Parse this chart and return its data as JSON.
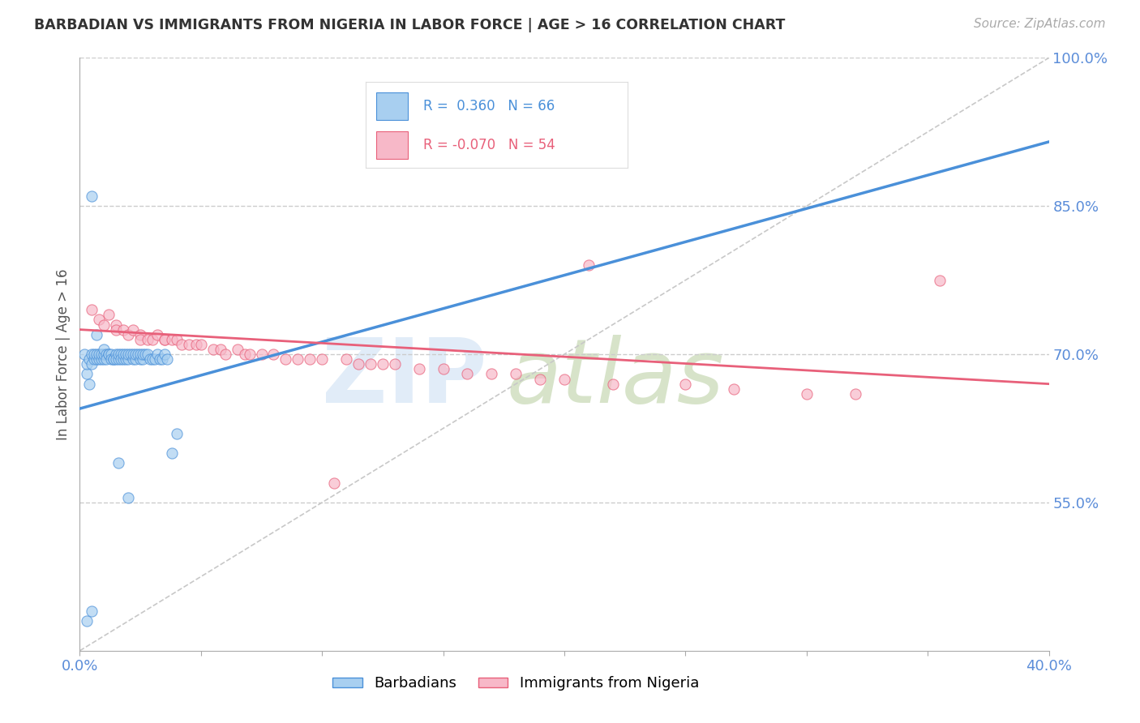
{
  "title": "BARBADIAN VS IMMIGRANTS FROM NIGERIA IN LABOR FORCE | AGE > 16 CORRELATION CHART",
  "source": "Source: ZipAtlas.com",
  "ylabel": "In Labor Force | Age > 16",
  "xlim": [
    0.0,
    0.4
  ],
  "ylim": [
    0.4,
    1.0
  ],
  "ytick_positions": [
    0.55,
    0.7,
    0.85,
    1.0
  ],
  "ytick_labels": [
    "55.0%",
    "70.0%",
    "85.0%",
    "100.0%"
  ],
  "blue_color": "#a8cff0",
  "pink_color": "#f7b8c8",
  "blue_line_color": "#4a90d9",
  "pink_line_color": "#e8607a",
  "ref_line_color": "#c8c8c8",
  "legend_blue_r": "0.360",
  "legend_blue_n": "66",
  "legend_pink_r": "-0.070",
  "legend_pink_n": "54",
  "label_color": "#5b8dd9",
  "blue_scatter_x": [
    0.002,
    0.003,
    0.003,
    0.004,
    0.004,
    0.005,
    0.005,
    0.005,
    0.006,
    0.006,
    0.007,
    0.007,
    0.007,
    0.008,
    0.008,
    0.009,
    0.009,
    0.01,
    0.01,
    0.01,
    0.011,
    0.011,
    0.012,
    0.012,
    0.013,
    0.013,
    0.014,
    0.014,
    0.015,
    0.015,
    0.016,
    0.016,
    0.017,
    0.017,
    0.018,
    0.018,
    0.019,
    0.019,
    0.02,
    0.02,
    0.021,
    0.022,
    0.022,
    0.023,
    0.023,
    0.024,
    0.025,
    0.025,
    0.026,
    0.026,
    0.027,
    0.028,
    0.029,
    0.03,
    0.031,
    0.032,
    0.033,
    0.034,
    0.035,
    0.036,
    0.038,
    0.04,
    0.003,
    0.005,
    0.016,
    0.02
  ],
  "blue_scatter_y": [
    0.7,
    0.68,
    0.69,
    0.67,
    0.695,
    0.86,
    0.7,
    0.69,
    0.695,
    0.7,
    0.695,
    0.7,
    0.72,
    0.695,
    0.7,
    0.695,
    0.7,
    0.695,
    0.7,
    0.705,
    0.7,
    0.695,
    0.7,
    0.7,
    0.7,
    0.695,
    0.695,
    0.695,
    0.7,
    0.695,
    0.695,
    0.7,
    0.7,
    0.695,
    0.695,
    0.7,
    0.695,
    0.7,
    0.695,
    0.7,
    0.7,
    0.695,
    0.7,
    0.695,
    0.7,
    0.7,
    0.695,
    0.7,
    0.695,
    0.7,
    0.7,
    0.7,
    0.695,
    0.695,
    0.695,
    0.7,
    0.695,
    0.695,
    0.7,
    0.695,
    0.6,
    0.62,
    0.43,
    0.44,
    0.59,
    0.555
  ],
  "pink_scatter_x": [
    0.005,
    0.008,
    0.01,
    0.012,
    0.015,
    0.015,
    0.018,
    0.02,
    0.022,
    0.025,
    0.025,
    0.028,
    0.03,
    0.032,
    0.035,
    0.035,
    0.038,
    0.04,
    0.042,
    0.045,
    0.048,
    0.05,
    0.055,
    0.058,
    0.06,
    0.065,
    0.068,
    0.07,
    0.075,
    0.08,
    0.085,
    0.09,
    0.095,
    0.1,
    0.105,
    0.11,
    0.115,
    0.12,
    0.125,
    0.13,
    0.14,
    0.15,
    0.16,
    0.17,
    0.18,
    0.19,
    0.2,
    0.21,
    0.22,
    0.25,
    0.27,
    0.3,
    0.32,
    0.355
  ],
  "pink_scatter_y": [
    0.745,
    0.735,
    0.73,
    0.74,
    0.73,
    0.725,
    0.725,
    0.72,
    0.725,
    0.72,
    0.715,
    0.715,
    0.715,
    0.72,
    0.715,
    0.715,
    0.715,
    0.715,
    0.71,
    0.71,
    0.71,
    0.71,
    0.705,
    0.705,
    0.7,
    0.705,
    0.7,
    0.7,
    0.7,
    0.7,
    0.695,
    0.695,
    0.695,
    0.695,
    0.57,
    0.695,
    0.69,
    0.69,
    0.69,
    0.69,
    0.685,
    0.685,
    0.68,
    0.68,
    0.68,
    0.675,
    0.675,
    0.79,
    0.67,
    0.67,
    0.665,
    0.66,
    0.66,
    0.775
  ],
  "blue_trend_x0": 0.0,
  "blue_trend_x1": 0.4,
  "blue_trend_y0": 0.645,
  "blue_trend_y1": 0.915,
  "pink_trend_x0": 0.0,
  "pink_trend_x1": 0.4,
  "pink_trend_y0": 0.725,
  "pink_trend_y1": 0.67
}
